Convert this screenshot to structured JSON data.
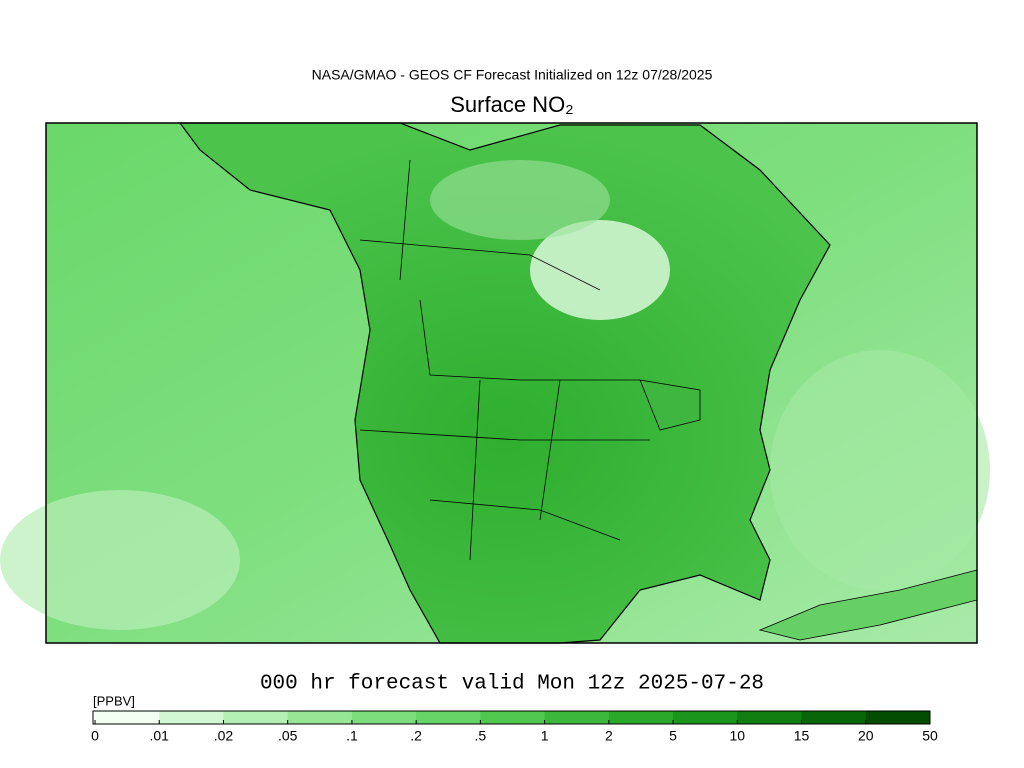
{
  "header": {
    "subtitle": "NASA/GMAO - GEOS CF Forecast Initialized on 12z 07/28/2025",
    "title": "Surface NO₂"
  },
  "footer": {
    "valid_time": "000 hr forecast valid Mon 12z 2025-07-28"
  },
  "colorbar": {
    "unit": "[PPBV]",
    "labels": [
      "0",
      ".01",
      ".02",
      ".05",
      ".1",
      ".2",
      ".5",
      "1",
      "2",
      "5",
      "10",
      "15",
      "20",
      "50"
    ],
    "colors": [
      "#f2fff2",
      "#d2f7d2",
      "#b4efb4",
      "#96e696",
      "#7ddd7d",
      "#66d466",
      "#50c850",
      "#3cb93c",
      "#2aa82a",
      "#1c951c",
      "#107e10",
      "#086608",
      "#034d03"
    ]
  }
}
